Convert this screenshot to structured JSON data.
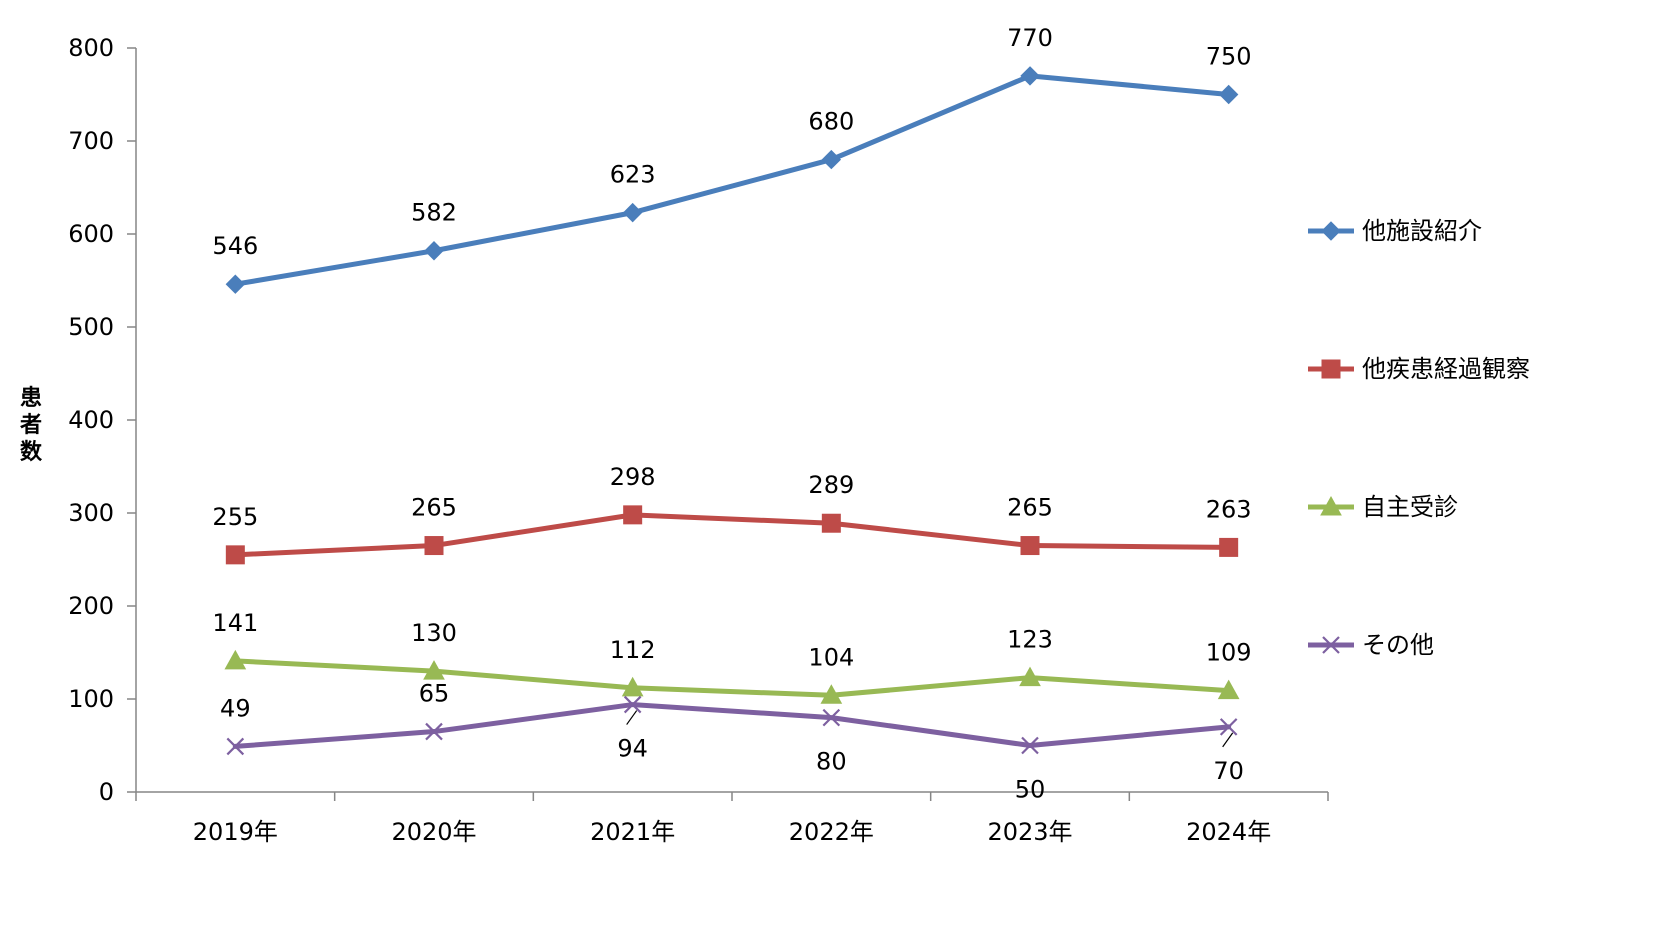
{
  "chart_data": {
    "type": "line",
    "title": "",
    "xlabel": "",
    "ylabel": "患者数",
    "ylim": [
      0,
      800
    ],
    "ytick_step": 100,
    "grid": false,
    "legend_position": "right",
    "categories": [
      "2019年",
      "2020年",
      "2021年",
      "2022年",
      "2023年",
      "2024年"
    ],
    "series": [
      {
        "name": "他施設紹介",
        "values": [
          546,
          582,
          623,
          680,
          770,
          750
        ],
        "color": "#4A7EBB",
        "marker": "diamond",
        "label_position": "above"
      },
      {
        "name": "他疾患経過観察",
        "values": [
          255,
          265,
          298,
          289,
          265,
          263
        ],
        "color": "#BE4B48",
        "marker": "square",
        "label_position": "above"
      },
      {
        "name": "自主受診",
        "values": [
          141,
          130,
          112,
          104,
          123,
          109
        ],
        "color": "#98B954",
        "marker": "triangle",
        "label_position": "above"
      },
      {
        "name": "その他",
        "values": [
          49,
          65,
          94,
          80,
          50,
          70
        ],
        "color": "#7D60A0",
        "marker": "x",
        "label_position": "mixed"
      }
    ]
  }
}
